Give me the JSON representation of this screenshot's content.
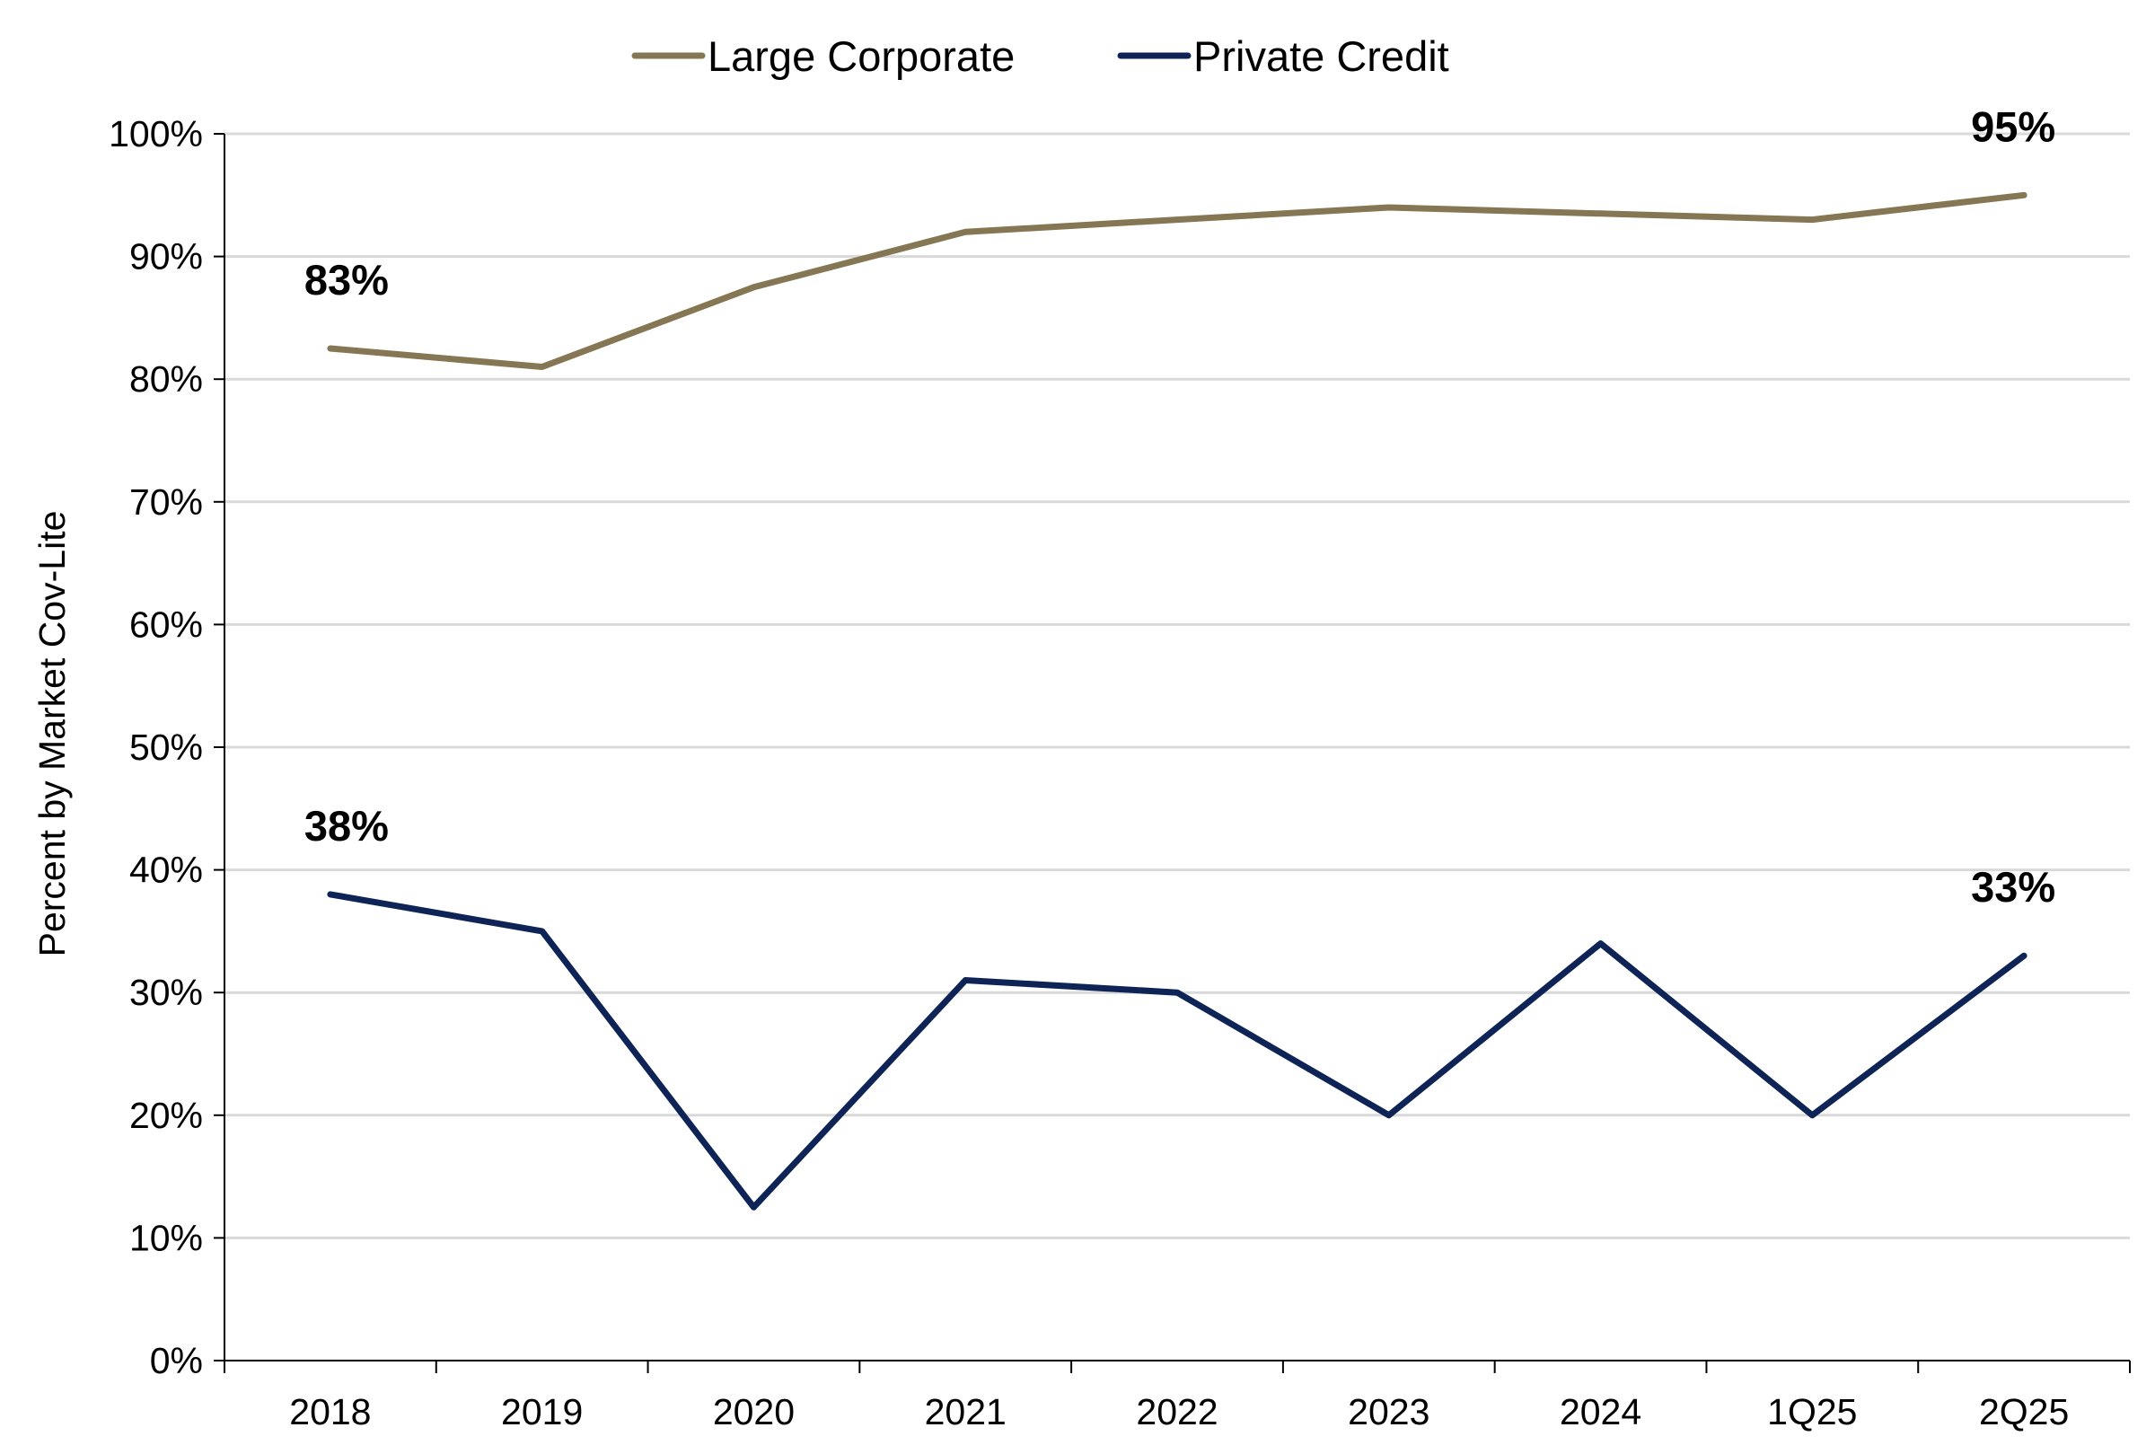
{
  "chart_data": {
    "type": "line",
    "categories": [
      "2018",
      "2019",
      "2020",
      "2021",
      "2022",
      "2023",
      "2024",
      "1Q25",
      "2Q25"
    ],
    "series": [
      {
        "name": "Large Corporate",
        "color": "#857654",
        "values": [
          82.5,
          81,
          87.5,
          92,
          93,
          94,
          93.5,
          93,
          95
        ]
      },
      {
        "name": "Private Credit",
        "color": "#0f2456",
        "values": [
          38,
          35,
          12.5,
          31,
          30,
          20,
          34,
          20,
          33
        ]
      }
    ],
    "annotations": [
      {
        "series": 0,
        "index": 0,
        "text": "83%"
      },
      {
        "series": 0,
        "index": 8,
        "text": "95%"
      },
      {
        "series": 1,
        "index": 0,
        "text": "38%"
      },
      {
        "series": 1,
        "index": 8,
        "text": "33%"
      }
    ],
    "xlabel": "",
    "ylabel": "Percent by Market Cov-Lite",
    "ylim": [
      0,
      100
    ],
    "yticks": [
      "0%",
      "10%",
      "20%",
      "30%",
      "40%",
      "50%",
      "60%",
      "70%",
      "80%",
      "90%",
      "100%"
    ],
    "grid": true,
    "gridline_color": "#d9d9d9",
    "legend_position": "top-center"
  }
}
